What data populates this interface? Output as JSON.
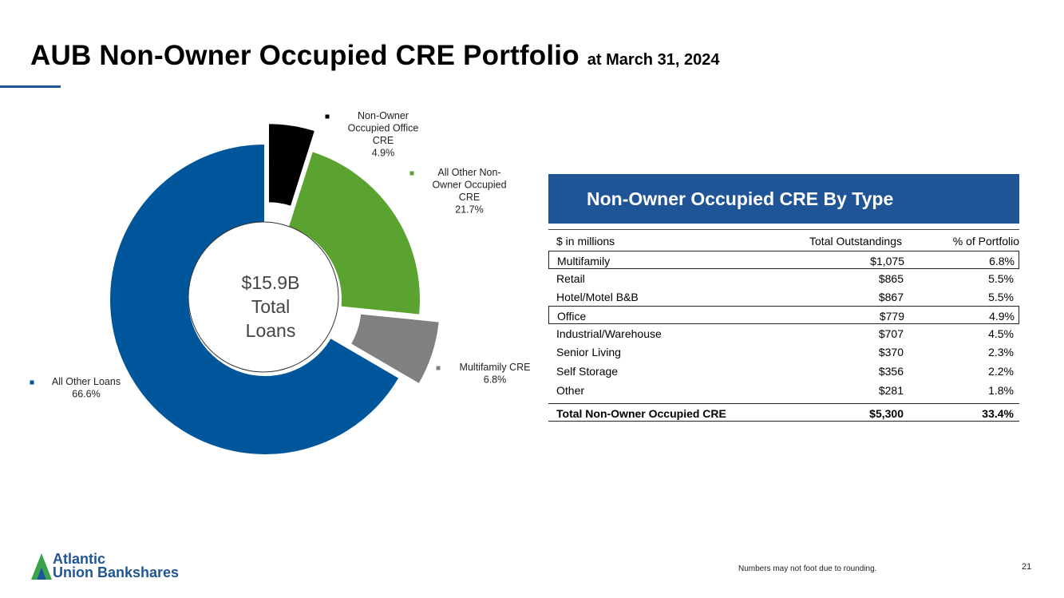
{
  "title": {
    "main": "AUB Non-Owner Occupied CRE Portfolio",
    "sub": "at March 31, 2024"
  },
  "chart_data": {
    "type": "pie",
    "variant": "donut",
    "center_label": [
      "$15.9B",
      "Total",
      "Loans"
    ],
    "slices": [
      {
        "label": [
          "Non-Owner",
          "Occupied Office",
          "CRE"
        ],
        "value_label": "4.9%",
        "value": 4.9,
        "color": "#000000",
        "exploded": true
      },
      {
        "label": [
          "All Other Non-",
          "Owner Occupied",
          "CRE"
        ],
        "value_label": "21.7%",
        "value": 21.7,
        "color": "#5aa331",
        "exploded": false
      },
      {
        "label": [
          "Multifamily CRE"
        ],
        "value_label": "6.8%",
        "value": 6.8,
        "color": "#808080",
        "exploded": true
      },
      {
        "label": [
          "All Other Loans"
        ],
        "value_label": "66.6%",
        "value": 66.6,
        "color": "#00569b",
        "exploded": false
      }
    ]
  },
  "table": {
    "title": "Non-Owner Occupied CRE By Type",
    "columns": [
      "$ in millions",
      "Total Outstandings",
      "% of Portfolio"
    ],
    "rows": [
      {
        "type": "Multifamily",
        "outstandings": "$1,075",
        "pct": "6.8%",
        "boxed": true
      },
      {
        "type": "Retail",
        "outstandings": "$865",
        "pct": "5.5%",
        "boxed": false
      },
      {
        "type": "Hotel/Motel B&B",
        "outstandings": "$867",
        "pct": "5.5%",
        "boxed": false
      },
      {
        "type": "Office",
        "outstandings": "$779",
        "pct": "4.9%",
        "boxed": true
      },
      {
        "type": "Industrial/Warehouse",
        "outstandings": "$707",
        "pct": "4.5%",
        "boxed": false
      },
      {
        "type": "Senior Living",
        "outstandings": "$370",
        "pct": "2.3%",
        "boxed": false
      },
      {
        "type": "Self Storage",
        "outstandings": "$356",
        "pct": "2.2%",
        "boxed": false
      },
      {
        "type": "Other",
        "outstandings": "$281",
        "pct": "1.8%",
        "boxed": false
      }
    ],
    "total": {
      "type": "Total Non-Owner Occupied CRE",
      "outstandings": "$5,300",
      "pct": "33.4%"
    }
  },
  "footnote": "Numbers may not foot due to rounding.",
  "page_number": "21",
  "logo": {
    "line1": "Atlantic",
    "line2": "Union Bankshares",
    "color": "#1f5597"
  }
}
